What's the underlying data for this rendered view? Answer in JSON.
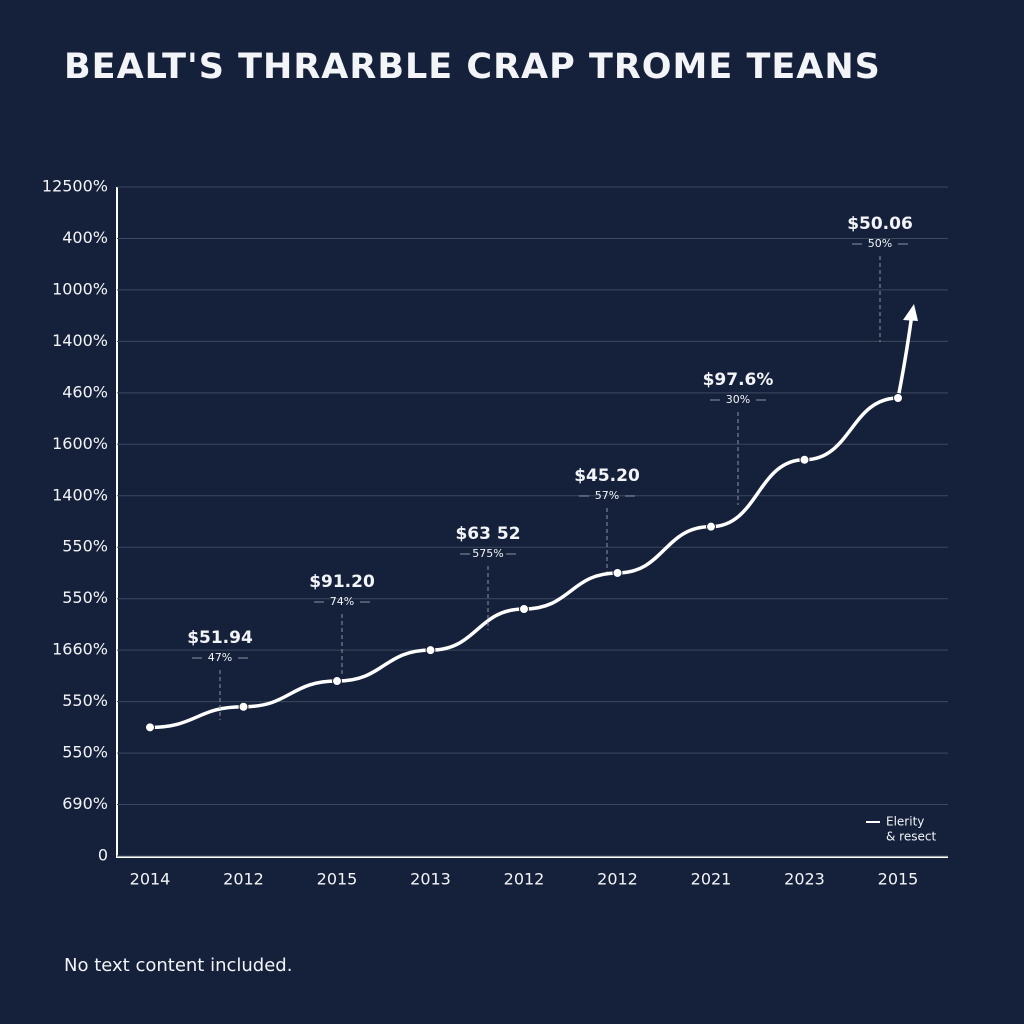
{
  "chart_data": {
    "type": "line",
    "title": "BEALT'S THRARBLE CRAP TROME TEANS",
    "categories": [
      "2014",
      "2012",
      "2015",
      "2013",
      "2012",
      "2012",
      "2021",
      "2023",
      "2015"
    ],
    "series": [
      {
        "name": "Elerity",
        "color": "#ffffff",
        "values": [
          2.5,
          2.9,
          3.4,
          4.0,
          4.8,
          5.5,
          6.4,
          7.7,
          8.9
        ]
      }
    ],
    "legend_note": "& resect",
    "legend": "bottom-right",
    "ylim": [
      0,
      13
    ],
    "yticks": [
      0,
      {
        "value": 1,
        "label": "690%"
      },
      {
        "value": 2,
        "label": "550%"
      },
      {
        "value": 3,
        "label": "550%"
      },
      {
        "value": 4,
        "label": "1660%"
      },
      {
        "value": 5,
        "label": "550%"
      },
      {
        "value": 6,
        "label": "550%"
      },
      {
        "value": 7,
        "label": "1400%"
      },
      {
        "value": 8,
        "label": "1600%"
      },
      {
        "value": 9,
        "label": "460%"
      },
      {
        "value": 10,
        "label": "1400%"
      },
      {
        "value": 11,
        "label": "1000%"
      },
      {
        "value": 12,
        "label": "400%"
      },
      {
        "value": 13,
        "label": "12500%"
      }
    ],
    "grid": true,
    "annotations": [
      {
        "label": "$51.94",
        "sublabel": "47%"
      },
      {
        "label": "$91.20",
        "sublabel": "74%"
      },
      {
        "label": "$63 52",
        "sublabel": "575%"
      },
      {
        "label": "$45.20",
        "sublabel": "57%"
      },
      {
        "label": "$97.6%",
        "sublabel": "30%"
      },
      {
        "label": "$50.06",
        "sublabel": "50%"
      }
    ],
    "footnote": "No text content included."
  }
}
